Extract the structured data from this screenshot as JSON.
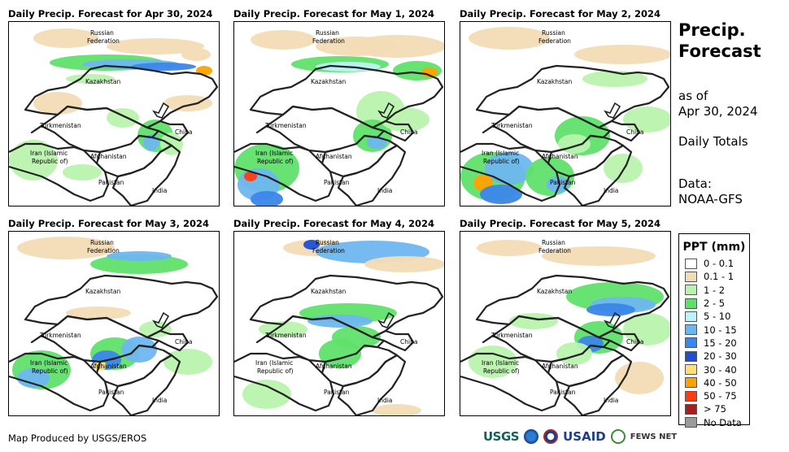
{
  "panels": [
    {
      "title": "Daily Precip. Forecast for Apr 30, 2024"
    },
    {
      "title": "Daily Precip. Forecast for May 1, 2024"
    },
    {
      "title": "Daily Precip. Forecast for May 2, 2024"
    },
    {
      "title": "Daily Precip. Forecast for May 3, 2024"
    },
    {
      "title": "Daily Precip. Forecast for May 4, 2024"
    },
    {
      "title": "Daily Precip. Forecast for May 5, 2024"
    }
  ],
  "map_labels": {
    "russia_line1": "Russian",
    "russia_line2": "Federation",
    "kazakhstan": "Kazakhstan",
    "turkmenistan": "Turkmenistan",
    "afghanistan": "Afghanistan",
    "iran_line1": "Iran  (Islamic",
    "iran_line2": "Republic of)",
    "pakistan": "Pakistan",
    "india": "India",
    "china": "China"
  },
  "side": {
    "title_line1": "Precip.",
    "title_line2": "Forecast",
    "asof_line1": "as of",
    "asof_line2": "Apr 30, 2024",
    "totals": "Daily Totals",
    "data_line1": "Data:",
    "data_line2": "NOAA-GFS"
  },
  "legend": {
    "title": "PPT (mm)",
    "items": [
      {
        "label": "0 - 0.1",
        "color": "#ffffff"
      },
      {
        "label": "0.1 - 1",
        "color": "#f3dcb5"
      },
      {
        "label": "1 - 2",
        "color": "#b9f3ae"
      },
      {
        "label": "2 - 5",
        "color": "#5fe06b"
      },
      {
        "label": "5 - 10",
        "color": "#bdf2f7"
      },
      {
        "label": "10 - 15",
        "color": "#6eb6ef"
      },
      {
        "label": "15 - 20",
        "color": "#3b86e8"
      },
      {
        "label": "20 - 30",
        "color": "#1d4fd1"
      },
      {
        "label": "30 - 40",
        "color": "#ffe070"
      },
      {
        "label": "40 - 50",
        "color": "#ffa200"
      },
      {
        "label": "50 - 75",
        "color": "#ff3b14"
      },
      {
        "label": "> 75",
        "color": "#a81e1e"
      },
      {
        "label": "No Data",
        "color": "#9a9a9a"
      }
    ]
  },
  "credit": "Map Produced by USGS/EROS",
  "logos": {
    "usgs": "USGS",
    "usaid": "USAID",
    "fews": "FEWS NET"
  }
}
